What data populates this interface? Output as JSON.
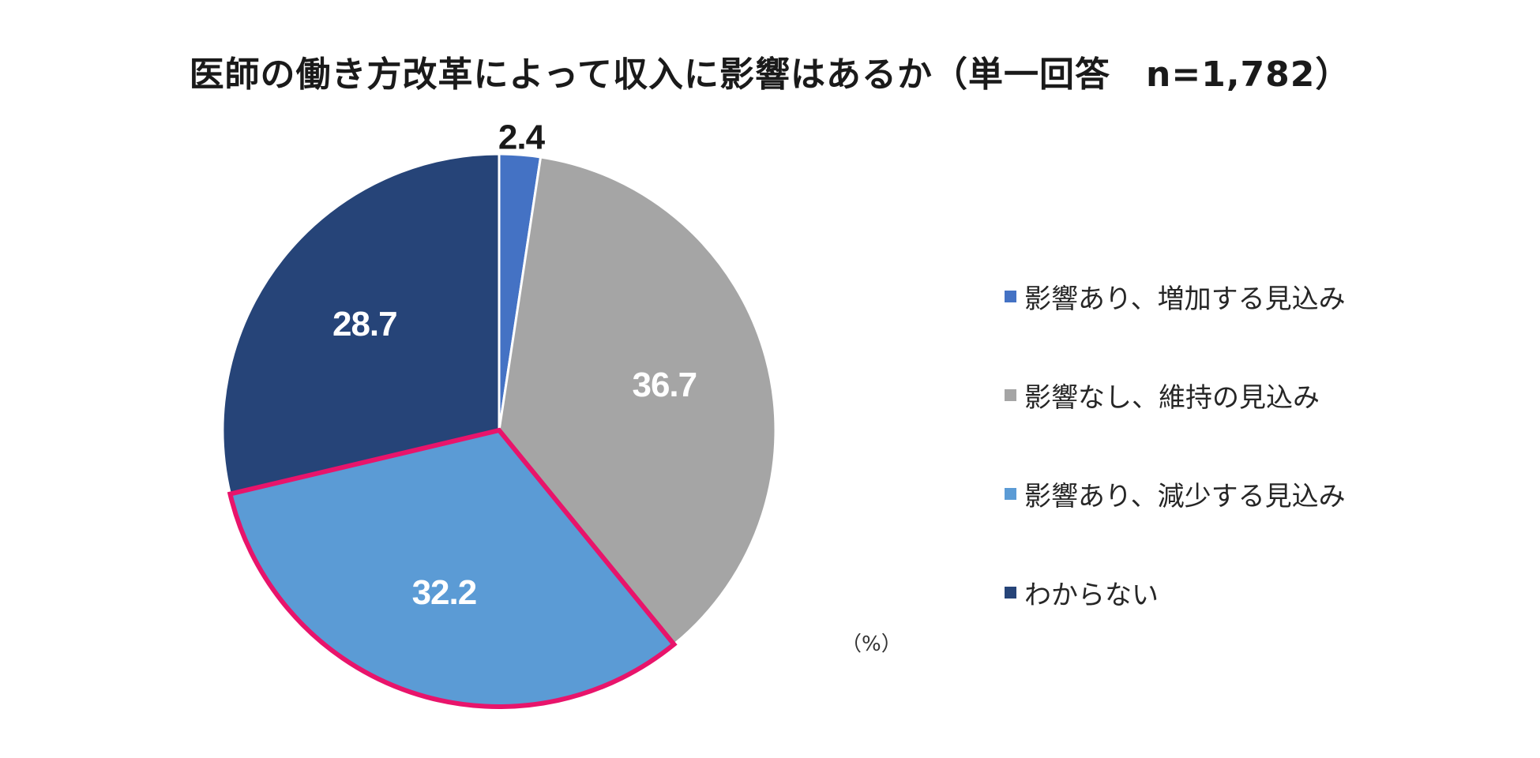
{
  "chart_data": {
    "type": "pie",
    "title": "医師の働き方改革によって収入に影響はあるか（単一回答　n=1,782）",
    "unit": "（%）",
    "start_angle_deg": 0,
    "direction": "clockwise",
    "slices": [
      {
        "label": "影響あり、増加する見込み",
        "value": 2.4,
        "color": "#4472C4",
        "label_color": "#1a1a1a",
        "label_position": "outside",
        "highlighted": false
      },
      {
        "label": "影響なし、維持の見込み",
        "value": 36.7,
        "color": "#A5A5A5",
        "label_color": "#ffffff",
        "label_position": "inside",
        "highlighted": false
      },
      {
        "label": "影響あり、減少する見込み",
        "value": 32.2,
        "color": "#5B9BD5",
        "label_color": "#ffffff",
        "label_position": "inside",
        "highlighted": true
      },
      {
        "label": "わからない",
        "value": 28.7,
        "color": "#264478",
        "label_color": "#ffffff",
        "label_position": "inside",
        "highlighted": false
      }
    ],
    "highlight_color": "#E8146B",
    "legend_position": "right"
  }
}
